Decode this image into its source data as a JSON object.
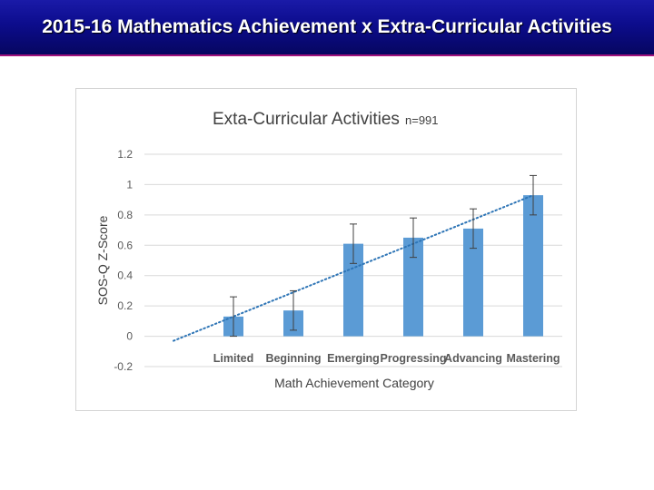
{
  "slide": {
    "title": "2015-16 Mathematics Achievement x Extra-Curricular Activities"
  },
  "chart_data": {
    "type": "bar",
    "title": "Exta-Curricular Activities",
    "subtitle": "n=991",
    "xlabel": "Math Achievement Category",
    "ylabel": "SOS-Q Z-Score",
    "categories": [
      "Limited",
      "Beginning",
      "Emerging",
      "Progressing",
      "Advancing",
      "Mastering"
    ],
    "values": [
      0.13,
      0.17,
      0.61,
      0.65,
      0.71,
      0.93
    ],
    "error_plus": [
      0.13,
      0.13,
      0.13,
      0.13,
      0.13,
      0.13
    ],
    "error_minus": [
      0.13,
      0.13,
      0.13,
      0.13,
      0.13,
      0.13
    ],
    "ylim": [
      -0.2,
      1.2
    ],
    "yticks": [
      -0.2,
      0,
      0.2,
      0.4,
      0.6,
      0.8,
      1,
      1.2
    ],
    "ytick_labels": [
      "-0.2",
      "0",
      "0.2",
      "0.4",
      "0.6",
      "0.8",
      "1",
      "1.2"
    ],
    "trendline": {
      "type": "linear",
      "style": "dotted",
      "start_y": -0.03,
      "end_y": 0.93
    },
    "grid": true,
    "legend": "none",
    "bar_color": "#5b9bd5",
    "trend_color": "#2e75b6"
  }
}
